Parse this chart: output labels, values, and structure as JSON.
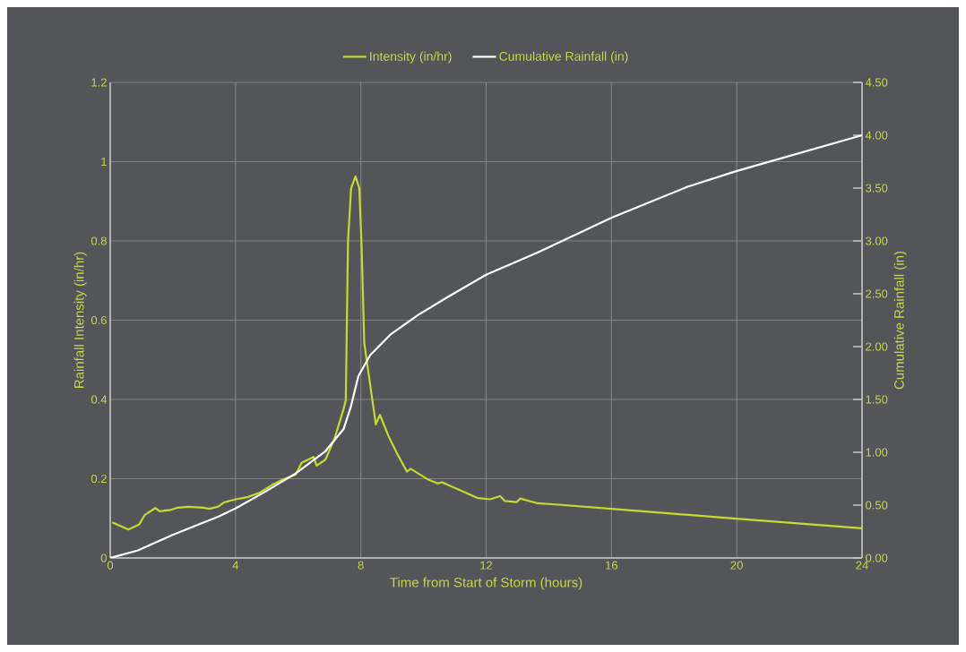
{
  "chart_data": {
    "type": "line",
    "xlabel": "Time from Start of Storm (hours)",
    "ylabel": "Rainfall Intensity (in/hr)",
    "y2label": "Cumulative Rainfall (in)",
    "xlim": [
      0,
      24
    ],
    "xticks": [
      0,
      4,
      8,
      12,
      16,
      20,
      24
    ],
    "ylim": [
      0,
      1.2
    ],
    "yticks": [
      0,
      0.2,
      0.4,
      0.6,
      0.8,
      1,
      1.2
    ],
    "y2lim": [
      0,
      4.5
    ],
    "y2ticks": [
      {
        "value": 0,
        "label": "0.00"
      },
      {
        "value": 0.5,
        "label": "0.50"
      },
      {
        "value": 1,
        "label": "1.00"
      },
      {
        "value": 1.5,
        "label": "1.50"
      },
      {
        "value": 2,
        "label": "2.00"
      },
      {
        "value": 2.5,
        "label": "2.50"
      },
      {
        "value": 3,
        "label": "3.00"
      },
      {
        "value": 3.5,
        "label": "3.50"
      },
      {
        "value": 4,
        "label": "4.00"
      },
      {
        "value": 4.5,
        "label": "4.50"
      }
    ],
    "grid": true,
    "legend": "top",
    "marker": "none",
    "line_style": "solid",
    "series": [
      {
        "name": "Intensity (in/hr)",
        "color": "#c5d92e",
        "x": [
          0.06,
          0.58,
          0.92,
          1.1,
          1.44,
          1.58,
          1.92,
          2.15,
          2.49,
          2.97,
          3.16,
          3.44,
          3.63,
          4.01,
          4.4,
          4.78,
          5.16,
          5.54,
          5.92,
          6.11,
          6.49,
          6.59,
          6.87,
          7.16,
          7.45,
          7.52,
          7.59,
          7.69,
          7.83,
          7.95,
          8.02,
          8.11,
          8.3,
          8.48,
          8.61,
          8.88,
          9.16,
          9.47,
          9.59,
          10.12,
          10.45,
          10.59,
          11.45,
          11.74,
          12.12,
          12.45,
          12.59,
          12.98,
          13.09,
          13.64,
          14.22,
          16.0,
          19.98,
          24
        ],
        "values": [
          0.09,
          0.072,
          0.084,
          0.108,
          0.126,
          0.118,
          0.121,
          0.127,
          0.129,
          0.127,
          0.124,
          0.129,
          0.14,
          0.148,
          0.154,
          0.165,
          0.184,
          0.199,
          0.21,
          0.24,
          0.255,
          0.233,
          0.248,
          0.301,
          0.376,
          0.398,
          0.798,
          0.933,
          0.963,
          0.933,
          0.798,
          0.542,
          0.436,
          0.337,
          0.361,
          0.308,
          0.263,
          0.218,
          0.225,
          0.199,
          0.188,
          0.191,
          0.161,
          0.151,
          0.148,
          0.156,
          0.144,
          0.141,
          0.15,
          0.138,
          0.135,
          0.124,
          0.099,
          0.075
        ]
      },
      {
        "name": "Cumulative Rainfall (in)",
        "color": "#ffffff",
        "axis": "y2",
        "x": [
          0,
          0.87,
          2.01,
          3.44,
          4.01,
          4.97,
          5.92,
          6.87,
          7.45,
          7.69,
          7.92,
          8.3,
          8.97,
          9.83,
          10.78,
          12,
          13.64,
          16.01,
          18.41,
          19.98,
          24
        ],
        "values": [
          0,
          0.07,
          0.22,
          0.39,
          0.47,
          0.63,
          0.8,
          1.01,
          1.22,
          1.44,
          1.72,
          1.92,
          2.12,
          2.3,
          2.47,
          2.68,
          2.89,
          3.22,
          3.51,
          3.66,
          4.0
        ]
      }
    ]
  }
}
